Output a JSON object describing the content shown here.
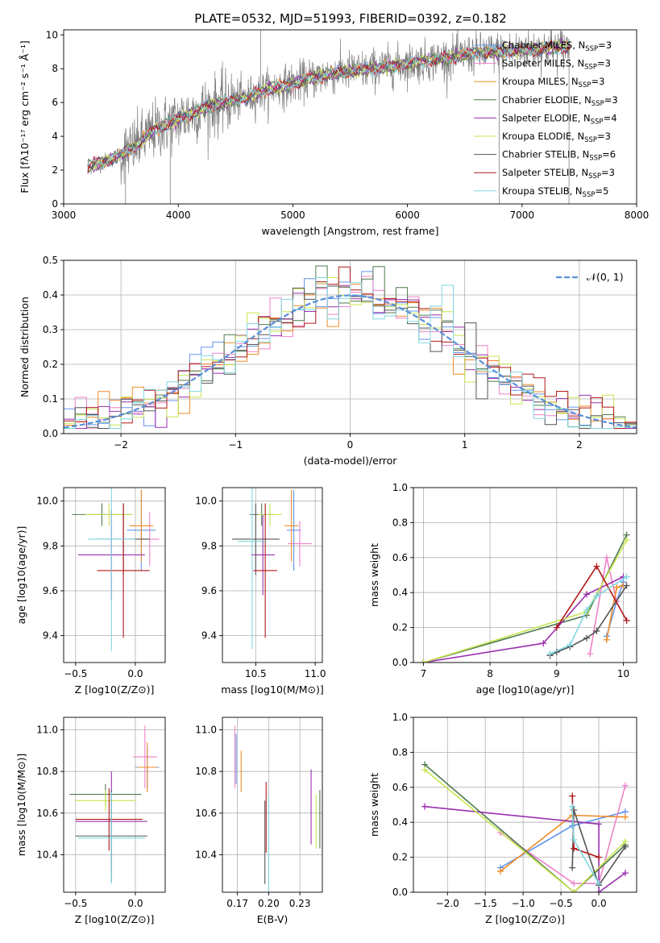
{
  "figure_title": "PLATE=0532, MJD=51993, FIBERID=0392, z=0.182",
  "colors": {
    "Chabrier MILES": "#6495ed",
    "Salpeter MILES": "#ee82c8",
    "Kroupa MILES": "#f08c28",
    "Chabrier ELODIE": "#4f7a4f",
    "Salpeter ELODIE": "#9b30b0",
    "Kroupa ELODIE": "#c8e650",
    "Chabrier STELIB": "#555555",
    "Salpeter STELIB": "#b01818",
    "Kroupa STELIB": "#7fd7e0"
  },
  "chart_data": [
    {
      "type": "line",
      "panel": "spectrum",
      "title": "PLATE=0532, MJD=51993, FIBERID=0392, z=0.182",
      "xlabel": "wavelength [Angstrom, rest frame]",
      "ylabel": "Flux [fλ10⁻¹⁷ erg cm⁻² s⁻¹ Å⁻¹]",
      "xlim": [
        3000,
        8000
      ],
      "ylim": [
        0,
        10.3
      ],
      "xticks": [
        3000,
        4000,
        5000,
        6000,
        7000,
        8000
      ],
      "yticks": [
        0,
        2,
        4,
        6,
        8,
        10
      ],
      "legend_position": "top-right",
      "legend": [
        {
          "base": "Chabrier MILES, N",
          "sub": "SSP",
          "tail": "=3"
        },
        {
          "base": "Salpeter MILES, N",
          "sub": "SSP",
          "tail": "=3"
        },
        {
          "base": "Kroupa MILES, N",
          "sub": "SSP",
          "tail": "=3"
        },
        {
          "base": "Chabrier ELODIE, N",
          "sub": "SSP",
          "tail": "=3"
        },
        {
          "base": "Salpeter ELODIE, N",
          "sub": "SSP",
          "tail": "=4"
        },
        {
          "base": "Kroupa ELODIE, N",
          "sub": "SSP",
          "tail": "=3"
        },
        {
          "base": "Chabrier STELIB, N",
          "sub": "SSP",
          "tail": "=6"
        },
        {
          "base": "Salpeter STELIB, N",
          "sub": "SSP",
          "tail": "=3"
        },
        {
          "base": "Kroupa STELIB, N",
          "sub": "SSP",
          "tail": "=5"
        }
      ],
      "continuum": {
        "x": [
          3200,
          3400,
          3600,
          3800,
          4000,
          4200,
          4400,
          4600,
          4800,
          5000,
          5200,
          5400,
          5600,
          5800,
          6000,
          6200,
          6400,
          6600,
          6800,
          7000,
          7200,
          7400
        ],
        "y": [
          2.2,
          2.6,
          3.3,
          4.4,
          5.0,
          5.6,
          6.0,
          6.3,
          6.8,
          7.1,
          7.5,
          7.8,
          7.9,
          8.1,
          8.3,
          8.5,
          8.7,
          8.9,
          9.0,
          9.1,
          9.2,
          9.3
        ]
      },
      "data_series": "data (grey)",
      "model_series": "best-fit models"
    },
    {
      "type": "histogram",
      "panel": "residuals",
      "xlabel": "(data-model)/error",
      "ylabel": "Normed distribution",
      "xlim": [
        -2.5,
        2.5
      ],
      "ylim": [
        0,
        0.5
      ],
      "xticks": [
        -2,
        -1,
        0,
        1,
        2
      ],
      "yticks": [
        0,
        0.1,
        0.2,
        0.3,
        0.4,
        0.5
      ],
      "legend": "N(0,1)",
      "legend_position": "top-right",
      "bin_width": 0.1,
      "bin_start": -2.5,
      "reference_curve": "normal pdf mean 0 sigma 1"
    },
    {
      "type": "scatter",
      "panel": "age-vs-Z",
      "xlabel": "Z [log10(Z/Z⊙)]",
      "ylabel": "age [log10(age/yr)]",
      "xlim": [
        -0.6,
        0.25
      ],
      "ylim": [
        9.28,
        10.06
      ],
      "xticks": [
        -0.5,
        0.0
      ],
      "yticks": [
        9.4,
        9.6,
        9.8,
        10.0
      ],
      "points": [
        {
          "model": "Chabrier MILES",
          "x": 0.05,
          "y": 9.87,
          "xerr": 0.12,
          "yerr": 0.18
        },
        {
          "model": "Salpeter MILES",
          "x": 0.12,
          "y": 9.83,
          "xerr": 0.08,
          "yerr": 0.12
        },
        {
          "model": "Kroupa MILES",
          "x": 0.05,
          "y": 9.89,
          "xerr": 0.1,
          "yerr": 0.16
        },
        {
          "model": "Chabrier ELODIE",
          "x": -0.28,
          "y": 9.94,
          "xerr": 0.25,
          "yerr": 0.05
        },
        {
          "model": "Salpeter ELODIE",
          "x": -0.2,
          "y": 9.76,
          "xerr": 0.28,
          "yerr": 0.2
        },
        {
          "model": "Kroupa ELODIE",
          "x": -0.22,
          "y": 9.94,
          "xerr": 0.2,
          "yerr": 0.05
        },
        {
          "model": "Chabrier STELIB",
          "x": -0.1,
          "y": 9.83,
          "xerr": 0.22,
          "yerr": 0.16
        },
        {
          "model": "Salpeter STELIB",
          "x": -0.1,
          "y": 9.69,
          "xerr": 0.22,
          "yerr": 0.3
        },
        {
          "model": "Kroupa STELIB",
          "x": -0.2,
          "y": 9.83,
          "xerr": 0.2,
          "yerr": 0.5
        }
      ]
    },
    {
      "type": "scatter",
      "panel": "age-vs-mass",
      "xlabel": "mass [log10(M/M⊙)]",
      "ylabel": "",
      "xlim": [
        10.22,
        11.06
      ],
      "ylim": [
        9.28,
        10.06
      ],
      "xticks": [
        10.5,
        11.0
      ],
      "yticks": [
        9.4,
        9.6,
        9.8,
        10.0
      ],
      "points": [
        {
          "model": "Chabrier MILES",
          "x": 10.82,
          "y": 9.87,
          "xerr": 0.06,
          "yerr": 0.18
        },
        {
          "model": "Salpeter MILES",
          "x": 10.87,
          "y": 9.81,
          "xerr": 0.1,
          "yerr": 0.1
        },
        {
          "model": "Kroupa MILES",
          "x": 10.8,
          "y": 9.89,
          "xerr": 0.06,
          "yerr": 0.16
        },
        {
          "model": "Chabrier ELODIE",
          "x": 10.55,
          "y": 9.94,
          "xerr": 0.1,
          "yerr": 0.05
        },
        {
          "model": "Salpeter ELODIE",
          "x": 10.56,
          "y": 9.76,
          "xerr": 0.1,
          "yerr": 0.18
        },
        {
          "model": "Kroupa ELODIE",
          "x": 10.62,
          "y": 9.94,
          "xerr": 0.1,
          "yerr": 0.05
        },
        {
          "model": "Chabrier STELIB",
          "x": 10.5,
          "y": 9.83,
          "xerr": 0.2,
          "yerr": 0.16
        },
        {
          "model": "Salpeter STELIB",
          "x": 10.58,
          "y": 9.69,
          "xerr": 0.1,
          "yerr": 0.3
        },
        {
          "model": "Kroupa STELIB",
          "x": 10.47,
          "y": 9.82,
          "xerr": 0.12,
          "yerr": 0.48
        }
      ]
    },
    {
      "type": "line",
      "panel": "weight-vs-age",
      "xlabel": "age [log10(age/yr)]",
      "ylabel": "mass weight",
      "xlim": [
        6.85,
        10.2
      ],
      "ylim": [
        0,
        1
      ],
      "xticks": [
        7,
        8,
        9,
        10
      ],
      "yticks": [
        0,
        0.2,
        0.4,
        0.6,
        0.8,
        1.0
      ],
      "series": [
        {
          "model": "Chabrier MILES",
          "x": [
            9.75,
            9.9,
            10.0
          ],
          "y": [
            0.15,
            0.35,
            0.46
          ]
        },
        {
          "model": "Salpeter MILES",
          "x": [
            9.5,
            9.75,
            9.9
          ],
          "y": [
            0.05,
            0.6,
            0.35
          ]
        },
        {
          "model": "Kroupa MILES",
          "x": [
            9.75,
            9.9,
            10.0
          ],
          "y": [
            0.13,
            0.43,
            0.44
          ]
        },
        {
          "model": "Chabrier ELODIE",
          "x": [
            7.0,
            9.45,
            10.05
          ],
          "y": [
            0.0,
            0.27,
            0.73
          ]
        },
        {
          "model": "Salpeter ELODIE",
          "x": [
            7.0,
            8.8,
            9.45,
            10.0
          ],
          "y": [
            0.0,
            0.11,
            0.39,
            0.49
          ]
        },
        {
          "model": "Kroupa ELODIE",
          "x": [
            7.0,
            9.45,
            10.05
          ],
          "y": [
            0.0,
            0.29,
            0.7
          ]
        },
        {
          "model": "Chabrier STELIB",
          "x": [
            8.9,
            9.0,
            9.2,
            9.45,
            9.6,
            10.05
          ],
          "y": [
            0.04,
            0.06,
            0.09,
            0.14,
            0.18,
            0.44
          ]
        },
        {
          "model": "Salpeter STELIB",
          "x": [
            9.0,
            9.6,
            10.05
          ],
          "y": [
            0.2,
            0.55,
            0.24
          ]
        },
        {
          "model": "Kroupa STELIB",
          "x": [
            8.9,
            9.2,
            9.45,
            9.6,
            10.05
          ],
          "y": [
            0.05,
            0.1,
            0.3,
            0.38,
            0.49
          ]
        }
      ]
    },
    {
      "type": "scatter",
      "panel": "mass-vs-Z",
      "xlabel": "Z [log10(Z/Z⊙)]",
      "ylabel": "mass [log10(M/M⊙)]",
      "xlim": [
        -0.6,
        0.25
      ],
      "ylim": [
        10.22,
        11.06
      ],
      "xticks": [
        -0.5,
        0.0
      ],
      "yticks": [
        10.4,
        10.6,
        10.8,
        11.0
      ],
      "points": [
        {
          "model": "Chabrier MILES",
          "x": 0.1,
          "y": 10.82,
          "xerr": 0.1,
          "yerr": 0.1
        },
        {
          "model": "Salpeter MILES",
          "x": 0.08,
          "y": 10.87,
          "xerr": 0.1,
          "yerr": 0.15
        },
        {
          "model": "Kroupa MILES",
          "x": 0.1,
          "y": 10.82,
          "xerr": 0.08,
          "yerr": 0.12
        },
        {
          "model": "Chabrier ELODIE",
          "x": -0.25,
          "y": 10.69,
          "xerr": 0.3,
          "yerr": 0.05
        },
        {
          "model": "Salpeter ELODIE",
          "x": -0.2,
          "y": 10.56,
          "xerr": 0.3,
          "yerr": 0.24
        },
        {
          "model": "Kroupa ELODIE",
          "x": -0.25,
          "y": 10.66,
          "xerr": 0.25,
          "yerr": 0.05
        },
        {
          "model": "Chabrier STELIB",
          "x": -0.2,
          "y": 10.49,
          "xerr": 0.3,
          "yerr": 0.22
        },
        {
          "model": "Salpeter STELIB",
          "x": -0.22,
          "y": 10.57,
          "xerr": 0.28,
          "yerr": 0.15
        },
        {
          "model": "Kroupa STELIB",
          "x": -0.2,
          "y": 10.48,
          "xerr": 0.28,
          "yerr": 0.22
        }
      ]
    },
    {
      "type": "scatter",
      "panel": "mass-vs-EBV",
      "xlabel": "E(B-V)",
      "ylabel": "",
      "xlim": [
        0.163,
        0.243
      ],
      "ylim": [
        10.22,
        11.06
      ],
      "xticks": [
        0.175,
        0.2,
        0.225
      ],
      "yticks": [
        10.4,
        10.6,
        10.8,
        11.0
      ],
      "points": [
        {
          "model": "Chabrier MILES",
          "x": 0.174,
          "y": 10.86,
          "xerr": 0,
          "yerr": 0.12
        },
        {
          "model": "Salpeter MILES",
          "x": 0.173,
          "y": 10.87,
          "xerr": 0,
          "yerr": 0.15
        },
        {
          "model": "Kroupa MILES",
          "x": 0.178,
          "y": 10.8,
          "xerr": 0,
          "yerr": 0.1
        },
        {
          "model": "Chabrier ELODIE",
          "x": 0.241,
          "y": 10.57,
          "xerr": 0,
          "yerr": 0.14
        },
        {
          "model": "Salpeter ELODIE",
          "x": 0.234,
          "y": 10.63,
          "xerr": 0,
          "yerr": 0.18
        },
        {
          "model": "Kroupa ELODIE",
          "x": 0.238,
          "y": 10.56,
          "xerr": 0,
          "yerr": 0.13
        },
        {
          "model": "Chabrier STELIB",
          "x": 0.197,
          "y": 10.46,
          "xerr": 0,
          "yerr": 0.2
        },
        {
          "model": "Salpeter STELIB",
          "x": 0.198,
          "y": 10.58,
          "xerr": 0,
          "yerr": 0.17
        },
        {
          "model": "Kroupa STELIB",
          "x": 0.2,
          "y": 10.44,
          "xerr": 0,
          "yerr": 0.24
        }
      ]
    },
    {
      "type": "line",
      "panel": "weight-vs-Z",
      "xlabel": "Z [log10(Z/Z⊙)]",
      "ylabel": "mass weight",
      "xlim": [
        -2.45,
        0.5
      ],
      "ylim": [
        0,
        1
      ],
      "xticks": [
        -2.0,
        -1.5,
        -1.0,
        -0.5,
        0.0
      ],
      "yticks": [
        0,
        0.2,
        0.4,
        0.6,
        0.8,
        1.0
      ],
      "series": [
        {
          "model": "Chabrier MILES",
          "x": [
            -1.3,
            -0.35,
            0.35
          ],
          "y": [
            0.14,
            0.38,
            0.46
          ]
        },
        {
          "model": "Salpeter MILES",
          "x": [
            -1.3,
            -0.33,
            0.0,
            0.35
          ],
          "y": [
            0.34,
            0.05,
            0.05,
            0.61
          ]
        },
        {
          "model": "Kroupa MILES",
          "x": [
            -1.3,
            -0.35,
            0.35
          ],
          "y": [
            0.12,
            0.44,
            0.43
          ]
        },
        {
          "model": "Chabrier ELODIE",
          "x": [
            -2.3,
            -0.33,
            0.35
          ],
          "y": [
            0.73,
            0.0,
            0.27
          ]
        },
        {
          "model": "Salpeter ELODIE",
          "x": [
            -2.3,
            0.0,
            0.0,
            0.35
          ],
          "y": [
            0.49,
            0.39,
            0.0,
            0.11
          ]
        },
        {
          "model": "Kroupa ELODIE",
          "x": [
            -2.3,
            -0.33,
            0.35
          ],
          "y": [
            0.7,
            0.0,
            0.29
          ]
        },
        {
          "model": "Chabrier STELIB",
          "x": [
            -0.35,
            -0.33,
            0.0,
            0.35
          ],
          "y": [
            0.14,
            0.47,
            0.04,
            0.26
          ]
        },
        {
          "model": "Salpeter STELIB",
          "x": [
            -0.35,
            -0.33,
            0.0
          ],
          "y": [
            0.55,
            0.25,
            0.2
          ]
        },
        {
          "model": "Kroupa STELIB",
          "x": [
            -0.35,
            -0.33,
            0.0
          ],
          "y": [
            0.49,
            0.3,
            0.05
          ]
        }
      ]
    }
  ]
}
